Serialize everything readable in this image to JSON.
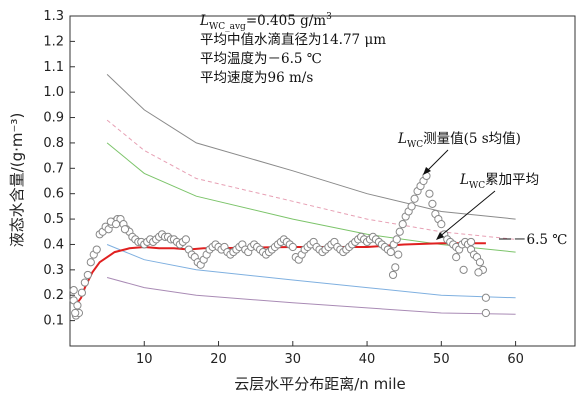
{
  "chart_data": {
    "type": "line",
    "xlabel": "云层水平分布距离/n mile",
    "ylabel": "液态水含量/(g·m⁻³)",
    "xlim": [
      0,
      68
    ],
    "ylim": [
      0,
      1.3
    ],
    "x_ticks": [
      10,
      20,
      30,
      40,
      50,
      60
    ],
    "y_ticks": [
      0.1,
      0.2,
      0.3,
      0.4,
      0.5,
      0.6,
      0.7,
      0.8,
      0.9,
      1.0,
      1.1,
      1.2,
      1.3
    ],
    "grid": false,
    "colors": {
      "gray": "#8a8a8a",
      "pink_dashed": "#e7a0b4",
      "green": "#7cc46a",
      "blue": "#7fb0e0",
      "purple": "#a98bb5",
      "red": "#e02020",
      "markers": "#888888"
    },
    "annotations": {
      "avg_prefix": "L",
      "avg_sub": "WC_avg",
      "avg_value": "=0.405 g/m",
      "avg_sup": "3",
      "line2": "平均中值水滴直径为14.77 μm",
      "line3": "平均温度为－6.5 ℃",
      "line4": "平均速度为96 m/s",
      "measured_prefix": "L",
      "measured_sub": "WC",
      "measured_label": "测量值(5 s均值)",
      "cumavg_prefix": "L",
      "cumavg_sub": "WC",
      "cumavg_label": "累加平均",
      "temp_label": "－6.5 ℃"
    },
    "series": [
      {
        "key": "gray",
        "style": "solid",
        "x": [
          5,
          10,
          17,
          30,
          40,
          50,
          60
        ],
        "y": [
          1.07,
          0.93,
          0.8,
          0.69,
          0.6,
          0.53,
          0.5
        ]
      },
      {
        "key": "pink_dashed",
        "style": "dashed",
        "x": [
          5,
          10,
          17,
          30,
          40,
          50,
          60
        ],
        "y": [
          0.89,
          0.77,
          0.66,
          0.57,
          0.5,
          0.45,
          0.42
        ]
      },
      {
        "key": "green",
        "style": "solid",
        "x": [
          5,
          10,
          17,
          30,
          40,
          50,
          60
        ],
        "y": [
          0.8,
          0.68,
          0.59,
          0.5,
          0.44,
          0.4,
          0.37
        ]
      },
      {
        "key": "blue",
        "style": "solid",
        "x": [
          5,
          10,
          17,
          30,
          40,
          50,
          60
        ],
        "y": [
          0.4,
          0.34,
          0.3,
          0.26,
          0.23,
          0.2,
          0.19
        ]
      },
      {
        "key": "purple",
        "style": "solid",
        "x": [
          5,
          10,
          17,
          30,
          40,
          50,
          60
        ],
        "y": [
          0.27,
          0.23,
          0.2,
          0.17,
          0.15,
          0.13,
          0.125
        ]
      },
      {
        "key": "red",
        "style": "solid",
        "width": 2,
        "x": [
          1,
          1.5,
          2,
          3,
          4,
          5,
          6,
          8,
          10,
          12,
          14,
          16,
          18,
          20,
          25,
          30,
          35,
          40,
          45,
          50,
          55,
          56
        ],
        "y": [
          0.17,
          0.19,
          0.23,
          0.29,
          0.33,
          0.35,
          0.37,
          0.385,
          0.39,
          0.385,
          0.385,
          0.38,
          0.385,
          0.385,
          0.388,
          0.39,
          0.39,
          0.39,
          0.4,
          0.405,
          0.405,
          0.405
        ]
      }
    ],
    "scatter": {
      "x": [
        0.5,
        0.8,
        1.2,
        1.6,
        2,
        2.4,
        2.8,
        3.2,
        3.6,
        4,
        4.4,
        4.8,
        5.2,
        5.6,
        6,
        6.4,
        6.8,
        7.2,
        7.6,
        8,
        8.4,
        8.8,
        9.2,
        9.6,
        10,
        10.4,
        10.8,
        11.2,
        11.6,
        12,
        12.4,
        12.8,
        13.2,
        13.6,
        14,
        14.4,
        14.8,
        15.2,
        15.6,
        16,
        16.4,
        16.8,
        17.2,
        17.6,
        18,
        18.4,
        18.8,
        19.2,
        19.6,
        20,
        20.4,
        20.8,
        21.2,
        21.6,
        22,
        22.4,
        22.8,
        23.2,
        23.6,
        24,
        24.4,
        24.8,
        25.2,
        25.6,
        26,
        26.4,
        26.8,
        27.2,
        27.6,
        28,
        28.4,
        28.8,
        29.2,
        29.6,
        30,
        30.4,
        30.8,
        31.2,
        31.6,
        32,
        32.4,
        32.8,
        33.2,
        33.6,
        34,
        34.4,
        34.8,
        35.2,
        35.6,
        36,
        36.4,
        36.8,
        37.2,
        37.6,
        38,
        38.4,
        38.8,
        39.2,
        39.6,
        40,
        40.4,
        40.8,
        41.2,
        41.6,
        42,
        42.4,
        42.8,
        43.2,
        43.6,
        44,
        44.4,
        44.8,
        45.2,
        45.6,
        46,
        46.4,
        46.8,
        47.2,
        47.6,
        48,
        48.4,
        48.8,
        49.2,
        49.6,
        50,
        50.4,
        50.8,
        51.2,
        51.6,
        52,
        52.4,
        52.8,
        53.2,
        53.6,
        54,
        54.4,
        54.8,
        55.2,
        55.6,
        56,
        56,
        53,
        52,
        54,
        55,
        43.5,
        43.8,
        44.2,
        0.5,
        1.0,
        0.7,
        5.5,
        6.2,
        7.4
      ],
      "y": [
        0.18,
        0.12,
        0.13,
        0.21,
        0.25,
        0.28,
        0.33,
        0.36,
        0.38,
        0.44,
        0.45,
        0.47,
        0.46,
        0.48,
        0.49,
        0.5,
        0.5,
        0.48,
        0.46,
        0.45,
        0.43,
        0.42,
        0.41,
        0.41,
        0.4,
        0.41,
        0.42,
        0.41,
        0.42,
        0.43,
        0.44,
        0.43,
        0.43,
        0.42,
        0.42,
        0.41,
        0.4,
        0.41,
        0.42,
        0.38,
        0.36,
        0.35,
        0.33,
        0.32,
        0.34,
        0.36,
        0.38,
        0.39,
        0.4,
        0.39,
        0.38,
        0.39,
        0.37,
        0.36,
        0.37,
        0.38,
        0.39,
        0.4,
        0.38,
        0.37,
        0.39,
        0.4,
        0.39,
        0.38,
        0.37,
        0.36,
        0.37,
        0.38,
        0.39,
        0.4,
        0.41,
        0.42,
        0.41,
        0.4,
        0.39,
        0.35,
        0.34,
        0.36,
        0.38,
        0.39,
        0.4,
        0.41,
        0.39,
        0.38,
        0.37,
        0.38,
        0.39,
        0.4,
        0.41,
        0.39,
        0.38,
        0.37,
        0.38,
        0.39,
        0.4,
        0.41,
        0.42,
        0.43,
        0.42,
        0.41,
        0.42,
        0.43,
        0.42,
        0.41,
        0.4,
        0.39,
        0.38,
        0.37,
        0.4,
        0.42,
        0.45,
        0.48,
        0.51,
        0.53,
        0.55,
        0.58,
        0.61,
        0.63,
        0.65,
        0.67,
        0.6,
        0.56,
        0.52,
        0.5,
        0.48,
        0.44,
        0.42,
        0.41,
        0.4,
        0.39,
        0.38,
        0.4,
        0.41,
        0.4,
        0.38,
        0.36,
        0.35,
        0.33,
        0.3,
        0.19,
        0.13,
        0.3,
        0.35,
        0.41,
        0.29,
        0.28,
        0.31,
        0.36,
        0.22,
        0.16,
        0.13,
        0.49,
        0.48,
        0.46
      ]
    }
  }
}
